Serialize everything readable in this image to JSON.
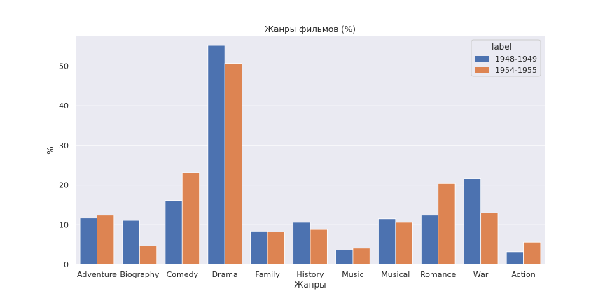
{
  "chart_data": {
    "type": "bar",
    "title": "Жанры фильмов (%)",
    "xlabel": "Жанры",
    "ylabel": "%",
    "categories": [
      "Adventure",
      "Biography",
      "Comedy",
      "Drama",
      "Family",
      "History",
      "Music",
      "Musical",
      "Romance",
      "War",
      "Action"
    ],
    "series": [
      {
        "name": "1948-1949",
        "color": "#4c72b0",
        "values": [
          11.7,
          11.1,
          16.1,
          55.2,
          8.4,
          10.6,
          3.6,
          11.5,
          12.4,
          21.6,
          3.2
        ]
      },
      {
        "name": "1954-1955",
        "color": "#dd8452",
        "values": [
          12.4,
          4.7,
          23.1,
          50.7,
          8.2,
          8.8,
          4.1,
          10.6,
          20.4,
          13.0,
          5.6
        ]
      }
    ],
    "ylim": [
      0,
      57.5
    ],
    "yticks": [
      0,
      10,
      20,
      30,
      40,
      50
    ],
    "grid": true,
    "background": "#eaeaf2",
    "legend": {
      "title": "label",
      "placement": "top-right"
    }
  }
}
